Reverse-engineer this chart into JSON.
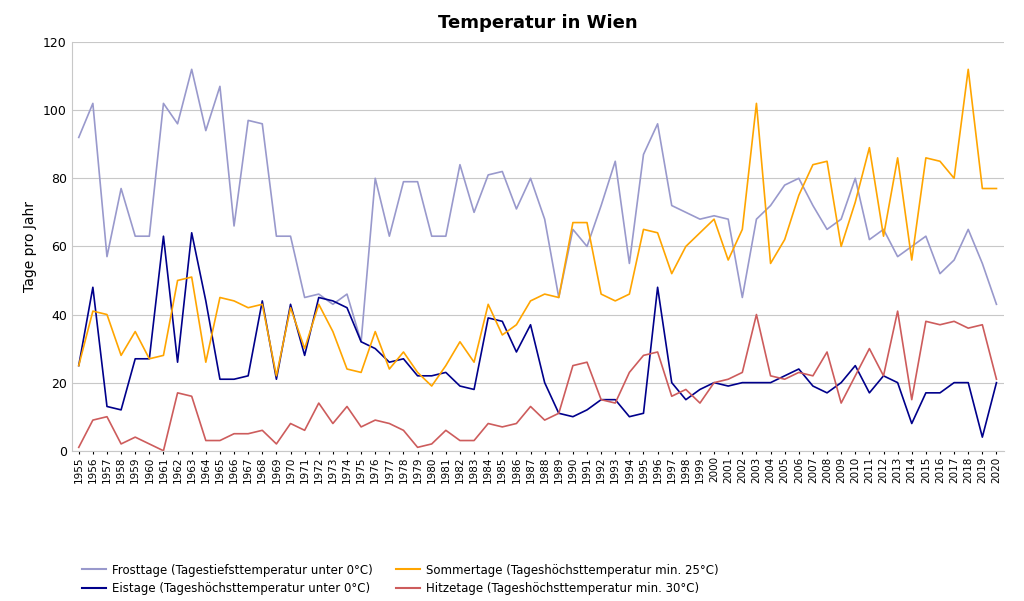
{
  "years": [
    1955,
    1956,
    1957,
    1958,
    1959,
    1960,
    1961,
    1962,
    1963,
    1964,
    1965,
    1966,
    1967,
    1968,
    1969,
    1970,
    1971,
    1972,
    1973,
    1974,
    1975,
    1976,
    1977,
    1978,
    1979,
    1980,
    1981,
    1982,
    1983,
    1984,
    1985,
    1986,
    1987,
    1988,
    1989,
    1990,
    1991,
    1992,
    1993,
    1994,
    1995,
    1996,
    1997,
    1998,
    1999,
    2000,
    2001,
    2002,
    2003,
    2004,
    2005,
    2006,
    2007,
    2008,
    2009,
    2010,
    2011,
    2012,
    2013,
    2014,
    2015,
    2016,
    2017,
    2018,
    2019,
    2020
  ],
  "frosttage": [
    92,
    102,
    57,
    77,
    63,
    63,
    102,
    96,
    112,
    94,
    107,
    66,
    97,
    96,
    63,
    63,
    45,
    46,
    43,
    46,
    32,
    80,
    63,
    79,
    79,
    63,
    63,
    84,
    70,
    81,
    82,
    71,
    80,
    68,
    45,
    65,
    60,
    72,
    85,
    55,
    87,
    96,
    72,
    70,
    68,
    69,
    68,
    45,
    68,
    72,
    78,
    80,
    72,
    65,
    68,
    80,
    62,
    65,
    57,
    60,
    63,
    52,
    56,
    65,
    55,
    43
  ],
  "eistage": [
    25,
    48,
    13,
    12,
    27,
    27,
    63,
    26,
    64,
    44,
    21,
    21,
    22,
    44,
    21,
    43,
    28,
    45,
    44,
    42,
    32,
    30,
    26,
    27,
    22,
    22,
    23,
    19,
    18,
    39,
    38,
    29,
    37,
    20,
    11,
    10,
    12,
    15,
    15,
    10,
    11,
    48,
    20,
    15,
    18,
    20,
    19,
    20,
    20,
    20,
    22,
    24,
    19,
    17,
    20,
    25,
    17,
    22,
    20,
    8,
    17,
    17,
    20,
    20,
    4,
    20
  ],
  "sommertage": [
    25,
    41,
    40,
    28,
    35,
    27,
    28,
    50,
    51,
    26,
    45,
    44,
    42,
    43,
    22,
    42,
    30,
    43,
    35,
    24,
    23,
    35,
    24,
    29,
    23,
    19,
    25,
    32,
    26,
    43,
    34,
    37,
    44,
    46,
    45,
    67,
    67,
    46,
    44,
    46,
    65,
    64,
    52,
    60,
    64,
    68,
    56,
    65,
    102,
    55,
    62,
    75,
    84,
    85,
    60,
    73,
    89,
    63,
    86,
    56,
    86,
    85,
    80,
    112,
    77,
    77
  ],
  "hitzetage": [
    1,
    9,
    10,
    2,
    4,
    2,
    0,
    17,
    16,
    3,
    3,
    5,
    5,
    6,
    2,
    8,
    6,
    14,
    8,
    13,
    7,
    9,
    8,
    6,
    1,
    2,
    6,
    3,
    3,
    8,
    7,
    8,
    13,
    9,
    11,
    25,
    26,
    15,
    14,
    23,
    28,
    29,
    16,
    18,
    14,
    20,
    21,
    23,
    40,
    22,
    21,
    23,
    22,
    29,
    14,
    22,
    30,
    22,
    41,
    15,
    38,
    37,
    38,
    36,
    37,
    21
  ],
  "title": "Temperatur in Wien",
  "ylabel": "Tage pro Jahr",
  "ylim": [
    0,
    120
  ],
  "yticks": [
    0,
    20,
    40,
    60,
    80,
    100,
    120
  ],
  "frosttage_color": "#9999cc",
  "eistage_color": "#00008B",
  "sommertage_color": "#FFA500",
  "hitzetage_color": "#CD5C5C",
  "legend_frosttage": "Frosttage (Tagestiefsttemperatur unter 0°C)",
  "legend_eistage": "Eistage (Tageshöchsttemperatur unter 0°C)",
  "legend_sommertage": "Sommertage (Tageshöchsttemperatur min. 25°C)",
  "legend_hitzetage": "Hitzetage (Tageshöchsttemperatur min. 30°C)",
  "bg_color": "#ffffff",
  "plot_bg_color": "#ffffff",
  "grid_color": "#c8c8c8"
}
